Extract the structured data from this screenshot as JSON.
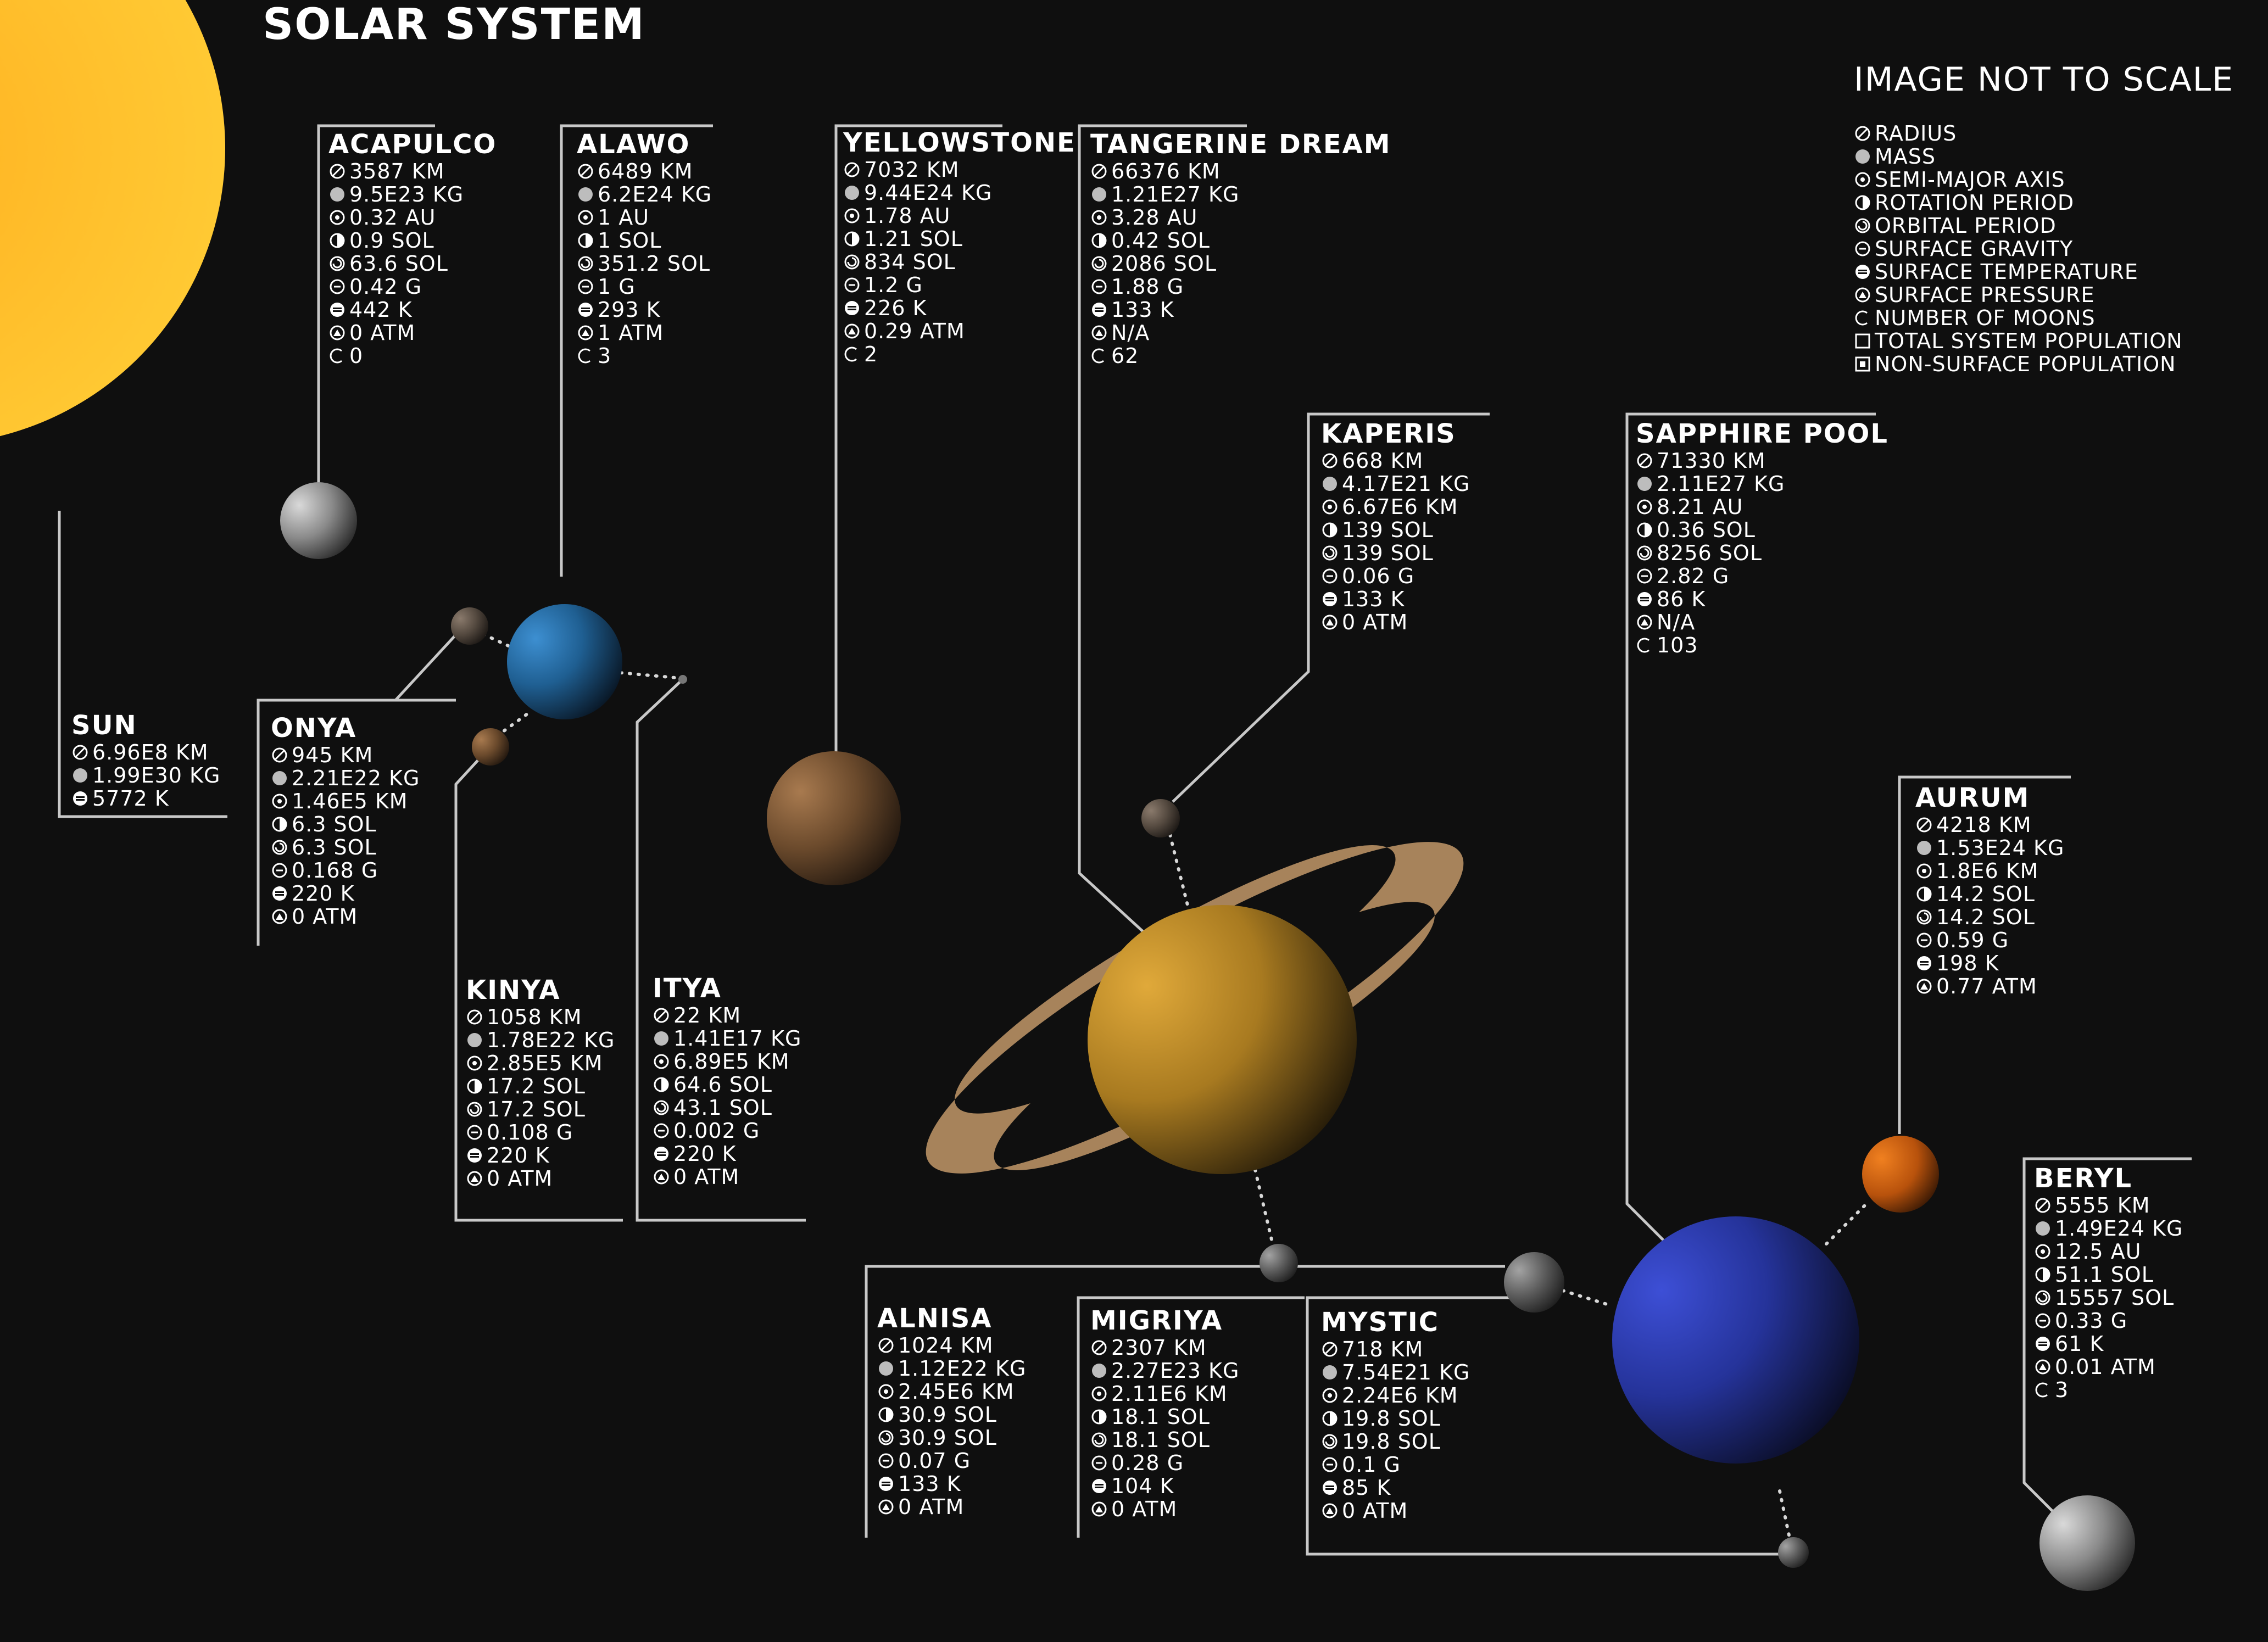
{
  "title": "SOLAR SYSTEM",
  "scale_note": "IMAGE NOT TO SCALE",
  "legend": [
    {
      "icon": "radius-icon",
      "label": "RADIUS"
    },
    {
      "icon": "mass-icon",
      "label": "MASS"
    },
    {
      "icon": "semi-major-axis-icon",
      "label": "SEMI-MAJOR AXIS"
    },
    {
      "icon": "rotation-period-icon",
      "label": "ROTATION PERIOD"
    },
    {
      "icon": "orbital-period-icon",
      "label": "ORBITAL PERIOD"
    },
    {
      "icon": "surface-gravity-icon",
      "label": "SURFACE GRAVITY"
    },
    {
      "icon": "surface-temperature-icon",
      "label": "SURFACE TEMPERATURE"
    },
    {
      "icon": "surface-pressure-icon",
      "label": "SURFACE PRESSURE"
    },
    {
      "icon": "number-of-moons-icon",
      "label": "NUMBER OF MOONS"
    },
    {
      "icon": "total-system-population-icon",
      "label": "TOTAL SYSTEM POPULATION"
    },
    {
      "icon": "non-surface-population-icon",
      "label": "NON-SURFACE POPULATION"
    }
  ],
  "colors": {
    "background": "#0f0f0f",
    "text": "#ffffff",
    "leader_line": "#c8c8c8",
    "sun": "#ffc629",
    "ring": "#a7835b"
  },
  "bodies": [
    {
      "name": "SUN",
      "stats": [
        {
          "icon": "radius-icon",
          "value": "6.96E8 KM"
        },
        {
          "icon": "mass-icon",
          "value": "1.99E30 KG"
        },
        {
          "icon": "surface-temperature-icon",
          "value": "5772 K"
        }
      ]
    },
    {
      "name": "ACAPULCO",
      "stats": [
        {
          "icon": "radius-icon",
          "value": "3587 KM"
        },
        {
          "icon": "mass-icon",
          "value": "9.5E23 KG"
        },
        {
          "icon": "semi-major-axis-icon",
          "value": "0.32 AU"
        },
        {
          "icon": "rotation-period-icon",
          "value": "0.9 SOL"
        },
        {
          "icon": "orbital-period-icon",
          "value": "63.6 SOL"
        },
        {
          "icon": "surface-gravity-icon",
          "value": "0.42 G"
        },
        {
          "icon": "surface-temperature-icon",
          "value": "442 K"
        },
        {
          "icon": "surface-pressure-icon",
          "value": "0 ATM"
        },
        {
          "icon": "number-of-moons-icon",
          "value": "0"
        }
      ]
    },
    {
      "name": "ALAWO",
      "stats": [
        {
          "icon": "radius-icon",
          "value": "6489 KM"
        },
        {
          "icon": "mass-icon",
          "value": "6.2E24 KG"
        },
        {
          "icon": "semi-major-axis-icon",
          "value": "1 AU"
        },
        {
          "icon": "rotation-period-icon",
          "value": "1 SOL"
        },
        {
          "icon": "orbital-period-icon",
          "value": "351.2 SOL"
        },
        {
          "icon": "surface-gravity-icon",
          "value": "1 G"
        },
        {
          "icon": "surface-temperature-icon",
          "value": "293 K"
        },
        {
          "icon": "surface-pressure-icon",
          "value": "1 ATM"
        },
        {
          "icon": "number-of-moons-icon",
          "value": "3"
        }
      ]
    },
    {
      "name": "YELLOWSTONE",
      "stats": [
        {
          "icon": "radius-icon",
          "value": "7032 KM"
        },
        {
          "icon": "mass-icon",
          "value": "9.44E24 KG"
        },
        {
          "icon": "semi-major-axis-icon",
          "value": "1.78 AU"
        },
        {
          "icon": "rotation-period-icon",
          "value": "1.21 SOL"
        },
        {
          "icon": "orbital-period-icon",
          "value": "834 SOL"
        },
        {
          "icon": "surface-gravity-icon",
          "value": "1.2 G"
        },
        {
          "icon": "surface-temperature-icon",
          "value": "226 K"
        },
        {
          "icon": "surface-pressure-icon",
          "value": "0.29 ATM"
        },
        {
          "icon": "number-of-moons-icon",
          "value": "2"
        }
      ]
    },
    {
      "name": "TANGERINE DREAM",
      "stats": [
        {
          "icon": "radius-icon",
          "value": "66376 KM"
        },
        {
          "icon": "mass-icon",
          "value": "1.21E27 KG"
        },
        {
          "icon": "semi-major-axis-icon",
          "value": "3.28 AU"
        },
        {
          "icon": "rotation-period-icon",
          "value": "0.42 SOL"
        },
        {
          "icon": "orbital-period-icon",
          "value": "2086 SOL"
        },
        {
          "icon": "surface-gravity-icon",
          "value": "1.88 G"
        },
        {
          "icon": "surface-temperature-icon",
          "value": "133 K"
        },
        {
          "icon": "surface-pressure-icon",
          "value": "N/A"
        },
        {
          "icon": "number-of-moons-icon",
          "value": "62"
        }
      ]
    },
    {
      "name": "KAPERIS",
      "stats": [
        {
          "icon": "radius-icon",
          "value": "668 KM"
        },
        {
          "icon": "mass-icon",
          "value": "4.17E21 KG"
        },
        {
          "icon": "semi-major-axis-icon",
          "value": "6.67E6 KM"
        },
        {
          "icon": "rotation-period-icon",
          "value": "139 SOL"
        },
        {
          "icon": "orbital-period-icon",
          "value": "139 SOL"
        },
        {
          "icon": "surface-gravity-icon",
          "value": "0.06 G"
        },
        {
          "icon": "surface-temperature-icon",
          "value": "133 K"
        },
        {
          "icon": "surface-pressure-icon",
          "value": "0 ATM"
        }
      ]
    },
    {
      "name": "SAPPHIRE POOL",
      "stats": [
        {
          "icon": "radius-icon",
          "value": "71330 KM"
        },
        {
          "icon": "mass-icon",
          "value": "2.11E27 KG"
        },
        {
          "icon": "semi-major-axis-icon",
          "value": "8.21 AU"
        },
        {
          "icon": "rotation-period-icon",
          "value": "0.36 SOL"
        },
        {
          "icon": "orbital-period-icon",
          "value": "8256 SOL"
        },
        {
          "icon": "surface-gravity-icon",
          "value": "2.82 G"
        },
        {
          "icon": "surface-temperature-icon",
          "value": "86 K"
        },
        {
          "icon": "surface-pressure-icon",
          "value": "N/A"
        },
        {
          "icon": "number-of-moons-icon",
          "value": "103"
        }
      ]
    },
    {
      "name": "ONYA",
      "stats": [
        {
          "icon": "radius-icon",
          "value": "945 KM"
        },
        {
          "icon": "mass-icon",
          "value": "2.21E22 KG"
        },
        {
          "icon": "semi-major-axis-icon",
          "value": "1.46E5 KM"
        },
        {
          "icon": "rotation-period-icon",
          "value": "6.3 SOL"
        },
        {
          "icon": "orbital-period-icon",
          "value": "6.3 SOL"
        },
        {
          "icon": "surface-gravity-icon",
          "value": "0.168 G"
        },
        {
          "icon": "surface-temperature-icon",
          "value": "220 K"
        },
        {
          "icon": "surface-pressure-icon",
          "value": "0 ATM"
        }
      ]
    },
    {
      "name": "KINYA",
      "stats": [
        {
          "icon": "radius-icon",
          "value": "1058 KM"
        },
        {
          "icon": "mass-icon",
          "value": "1.78E22 KG"
        },
        {
          "icon": "semi-major-axis-icon",
          "value": "2.85E5 KM"
        },
        {
          "icon": "rotation-period-icon",
          "value": "17.2 SOL"
        },
        {
          "icon": "orbital-period-icon",
          "value": "17.2 SOL"
        },
        {
          "icon": "surface-gravity-icon",
          "value": "0.108 G"
        },
        {
          "icon": "surface-temperature-icon",
          "value": "220 K"
        },
        {
          "icon": "surface-pressure-icon",
          "value": "0 ATM"
        }
      ]
    },
    {
      "name": "ITYA",
      "stats": [
        {
          "icon": "radius-icon",
          "value": "22 KM"
        },
        {
          "icon": "mass-icon",
          "value": "1.41E17 KG"
        },
        {
          "icon": "semi-major-axis-icon",
          "value": "6.89E5 KM"
        },
        {
          "icon": "rotation-period-icon",
          "value": "64.6 SOL"
        },
        {
          "icon": "orbital-period-icon",
          "value": "43.1 SOL"
        },
        {
          "icon": "surface-gravity-icon",
          "value": "0.002 G"
        },
        {
          "icon": "surface-temperature-icon",
          "value": "220 K"
        },
        {
          "icon": "surface-pressure-icon",
          "value": "0 ATM"
        }
      ]
    },
    {
      "name": "AURUM",
      "stats": [
        {
          "icon": "radius-icon",
          "value": "4218 KM"
        },
        {
          "icon": "mass-icon",
          "value": "1.53E24 KG"
        },
        {
          "icon": "semi-major-axis-icon",
          "value": "1.8E6 KM"
        },
        {
          "icon": "rotation-period-icon",
          "value": "14.2 SOL"
        },
        {
          "icon": "orbital-period-icon",
          "value": "14.2 SOL"
        },
        {
          "icon": "surface-gravity-icon",
          "value": "0.59 G"
        },
        {
          "icon": "surface-temperature-icon",
          "value": "198 K"
        },
        {
          "icon": "surface-pressure-icon",
          "value": "0.77 ATM"
        }
      ]
    },
    {
      "name": "BERYL",
      "stats": [
        {
          "icon": "radius-icon",
          "value": "5555 KM"
        },
        {
          "icon": "mass-icon",
          "value": "1.49E24 KG"
        },
        {
          "icon": "semi-major-axis-icon",
          "value": "12.5 AU"
        },
        {
          "icon": "rotation-period-icon",
          "value": "51.1 SOL"
        },
        {
          "icon": "orbital-period-icon",
          "value": "15557 SOL"
        },
        {
          "icon": "surface-gravity-icon",
          "value": "0.33 G"
        },
        {
          "icon": "surface-temperature-icon",
          "value": "61 K"
        },
        {
          "icon": "surface-pressure-icon",
          "value": "0.01 ATM"
        },
        {
          "icon": "number-of-moons-icon",
          "value": "3"
        }
      ]
    },
    {
      "name": "ALNISA",
      "stats": [
        {
          "icon": "radius-icon",
          "value": "1024 KM"
        },
        {
          "icon": "mass-icon",
          "value": "1.12E22 KG"
        },
        {
          "icon": "semi-major-axis-icon",
          "value": "2.45E6 KM"
        },
        {
          "icon": "rotation-period-icon",
          "value": "30.9 SOL"
        },
        {
          "icon": "orbital-period-icon",
          "value": "30.9 SOL"
        },
        {
          "icon": "surface-gravity-icon",
          "value": "0.07 G"
        },
        {
          "icon": "surface-temperature-icon",
          "value": "133 K"
        },
        {
          "icon": "surface-pressure-icon",
          "value": "0 ATM"
        }
      ]
    },
    {
      "name": "MIGRIYA",
      "stats": [
        {
          "icon": "radius-icon",
          "value": "2307 KM"
        },
        {
          "icon": "mass-icon",
          "value": "2.27E23 KG"
        },
        {
          "icon": "semi-major-axis-icon",
          "value": "2.11E6 KM"
        },
        {
          "icon": "rotation-period-icon",
          "value": "18.1 SOL"
        },
        {
          "icon": "orbital-period-icon",
          "value": "18.1 SOL"
        },
        {
          "icon": "surface-gravity-icon",
          "value": "0.28 G"
        },
        {
          "icon": "surface-temperature-icon",
          "value": "104 K"
        },
        {
          "icon": "surface-pressure-icon",
          "value": "0 ATM"
        }
      ]
    },
    {
      "name": "MYSTIC",
      "stats": [
        {
          "icon": "radius-icon",
          "value": "718 KM"
        },
        {
          "icon": "mass-icon",
          "value": "7.54E21 KG"
        },
        {
          "icon": "semi-major-axis-icon",
          "value": "2.24E6 KM"
        },
        {
          "icon": "rotation-period-icon",
          "value": "19.8 SOL"
        },
        {
          "icon": "orbital-period-icon",
          "value": "19.8 SOL"
        },
        {
          "icon": "surface-gravity-icon",
          "value": "0.1 G"
        },
        {
          "icon": "surface-temperature-icon",
          "value": "85 K"
        },
        {
          "icon": "surface-pressure-icon",
          "value": "0 ATM"
        }
      ]
    }
  ]
}
